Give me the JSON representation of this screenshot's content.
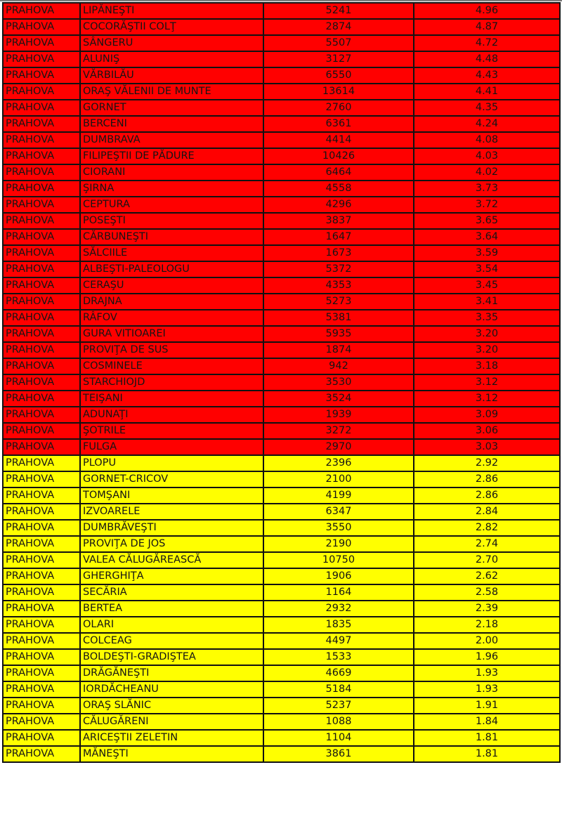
{
  "colors": {
    "high": "#ff0000",
    "low": "#ffff00"
  },
  "rows": [
    {
      "county": "PRAHOVA",
      "locality": "LIPĂNEŞTI",
      "population": "5241",
      "value": "4.96",
      "band": "high"
    },
    {
      "county": "PRAHOVA",
      "locality": "COCORĂŞTII COLŢ",
      "population": "2874",
      "value": "4.87",
      "band": "high"
    },
    {
      "county": "PRAHOVA",
      "locality": "SÂNGERU",
      "population": "5507",
      "value": "4.72",
      "band": "high"
    },
    {
      "county": "PRAHOVA",
      "locality": "ALUNIŞ",
      "population": "3127",
      "value": "4.48",
      "band": "high"
    },
    {
      "county": "PRAHOVA",
      "locality": "VĂRBILĂU",
      "population": "6550",
      "value": "4.43",
      "band": "high"
    },
    {
      "county": "PRAHOVA",
      "locality": "ORAŞ VĂLENII DE MUNTE",
      "population": "13614",
      "value": "4.41",
      "band": "high"
    },
    {
      "county": "PRAHOVA",
      "locality": "GORNET",
      "population": "2760",
      "value": "4.35",
      "band": "high"
    },
    {
      "county": "PRAHOVA",
      "locality": "BERCENI",
      "population": "6361",
      "value": "4.24",
      "band": "high"
    },
    {
      "county": "PRAHOVA",
      "locality": "DUMBRAVA",
      "population": "4414",
      "value": "4.08",
      "band": "high"
    },
    {
      "county": "PRAHOVA",
      "locality": "FILIPEŞTII DE PĂDURE",
      "population": "10426",
      "value": "4.03",
      "band": "high"
    },
    {
      "county": "PRAHOVA",
      "locality": "CIORANI",
      "population": "6464",
      "value": "4.02",
      "band": "high"
    },
    {
      "county": "PRAHOVA",
      "locality": "ŞIRNA",
      "population": "4558",
      "value": "3.73",
      "band": "high"
    },
    {
      "county": "PRAHOVA",
      "locality": "CEPTURA",
      "population": "4296",
      "value": "3.72",
      "band": "high"
    },
    {
      "county": "PRAHOVA",
      "locality": "POSEŞTI",
      "population": "3837",
      "value": "3.65",
      "band": "high"
    },
    {
      "county": "PRAHOVA",
      "locality": "CĂRBUNEŞTI",
      "population": "1647",
      "value": "3.64",
      "band": "high"
    },
    {
      "county": "PRAHOVA",
      "locality": "SĂLCIILE",
      "population": "1673",
      "value": "3.59",
      "band": "high"
    },
    {
      "county": "PRAHOVA",
      "locality": "ALBEŞTI-PALEOLOGU",
      "population": "5372",
      "value": "3.54",
      "band": "high"
    },
    {
      "county": "PRAHOVA",
      "locality": "CERAŞU",
      "population": "4353",
      "value": "3.45",
      "band": "high"
    },
    {
      "county": "PRAHOVA",
      "locality": "DRAJNA",
      "population": "5273",
      "value": "3.41",
      "band": "high"
    },
    {
      "county": "PRAHOVA",
      "locality": "RÂFOV",
      "population": "5381",
      "value": "3.35",
      "band": "high"
    },
    {
      "county": "PRAHOVA",
      "locality": "GURA VITIOAREI",
      "population": "5935",
      "value": "3.20",
      "band": "high"
    },
    {
      "county": "PRAHOVA",
      "locality": "PROVIŢA DE SUS",
      "population": "1874",
      "value": "3.20",
      "band": "high"
    },
    {
      "county": "PRAHOVA",
      "locality": "COSMINELE",
      "population": "942",
      "value": "3.18",
      "band": "high"
    },
    {
      "county": "PRAHOVA",
      "locality": "STARCHIOJD",
      "population": "3530",
      "value": "3.12",
      "band": "high"
    },
    {
      "county": "PRAHOVA",
      "locality": "TEIŞANI",
      "population": "3524",
      "value": "3.12",
      "band": "high"
    },
    {
      "county": "PRAHOVA",
      "locality": "ADUNAŢI",
      "population": "1939",
      "value": "3.09",
      "band": "high"
    },
    {
      "county": "PRAHOVA",
      "locality": "ŞOTRILE",
      "population": "3272",
      "value": "3.06",
      "band": "high"
    },
    {
      "county": "PRAHOVA",
      "locality": "FULGA",
      "population": "2970",
      "value": "3.03",
      "band": "high"
    },
    {
      "county": "PRAHOVA",
      "locality": "PLOPU",
      "population": "2396",
      "value": "2.92",
      "band": "low"
    },
    {
      "county": "PRAHOVA",
      "locality": "GORNET-CRICOV",
      "population": "2100",
      "value": "2.86",
      "band": "low"
    },
    {
      "county": "PRAHOVA",
      "locality": "TOMŞANI",
      "population": "4199",
      "value": "2.86",
      "band": "low"
    },
    {
      "county": "PRAHOVA",
      "locality": "IZVOARELE",
      "population": "6347",
      "value": "2.84",
      "band": "low"
    },
    {
      "county": "PRAHOVA",
      "locality": "DUMBRĂVEŞTI",
      "population": "3550",
      "value": "2.82",
      "band": "low"
    },
    {
      "county": "PRAHOVA",
      "locality": "PROVIŢA DE JOS",
      "population": "2190",
      "value": "2.74",
      "band": "low"
    },
    {
      "county": "PRAHOVA",
      "locality": "VALEA CĂLUGĂREASCĂ",
      "population": "10750",
      "value": "2.70",
      "band": "low"
    },
    {
      "county": "PRAHOVA",
      "locality": "GHERGHIŢA",
      "population": "1906",
      "value": "2.62",
      "band": "low"
    },
    {
      "county": "PRAHOVA",
      "locality": "SECĂRIA",
      "population": "1164",
      "value": "2.58",
      "band": "low"
    },
    {
      "county": "PRAHOVA",
      "locality": "BERTEA",
      "population": "2932",
      "value": "2.39",
      "band": "low"
    },
    {
      "county": "PRAHOVA",
      "locality": "OLARI",
      "population": "1835",
      "value": "2.18",
      "band": "low"
    },
    {
      "county": "PRAHOVA",
      "locality": "COLCEAG",
      "population": "4497",
      "value": "2.00",
      "band": "low"
    },
    {
      "county": "PRAHOVA",
      "locality": "BOLDEŞTI-GRADIŞTEA",
      "population": "1533",
      "value": "1.96",
      "band": "low"
    },
    {
      "county": "PRAHOVA",
      "locality": "DRĂGĂNEŞTI",
      "population": "4669",
      "value": "1.93",
      "band": "low"
    },
    {
      "county": "PRAHOVA",
      "locality": "IORDĂCHEANU",
      "population": "5184",
      "value": "1.93",
      "band": "low"
    },
    {
      "county": "PRAHOVA",
      "locality": "ORAŞ SLĂNIC",
      "population": "5237",
      "value": "1.91",
      "band": "low"
    },
    {
      "county": "PRAHOVA",
      "locality": "CĂLUGĂRENI",
      "population": "1088",
      "value": "1.84",
      "band": "low"
    },
    {
      "county": "PRAHOVA",
      "locality": "ARICEŞTII ZELETIN",
      "population": "1104",
      "value": "1.81",
      "band": "low"
    },
    {
      "county": "PRAHOVA",
      "locality": "MĂNEŞTI",
      "population": "3861",
      "value": "1.81",
      "band": "low"
    }
  ]
}
